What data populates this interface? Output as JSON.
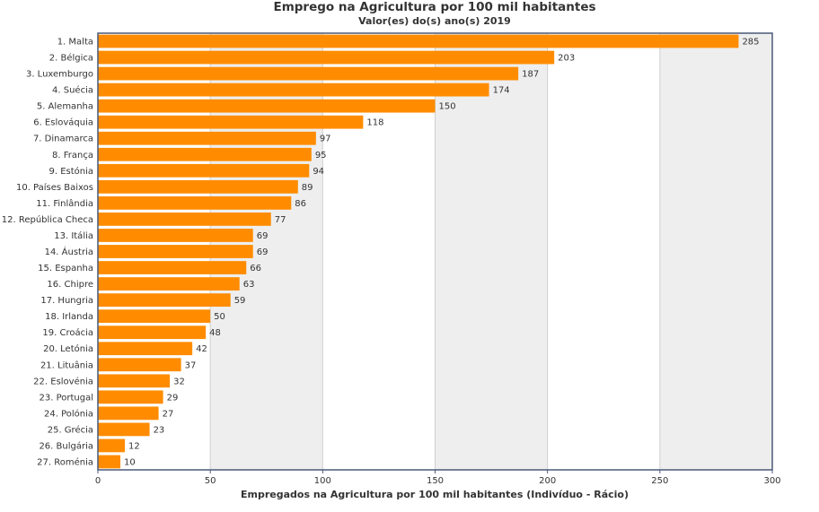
{
  "chart_data": {
    "type": "bar",
    "orientation": "horizontal",
    "title": "Emprego na Agricultura por 100 mil habitantes",
    "subtitle": "Valor(es) do(s) ano(s) 2019",
    "xlabel": "Empregados na Agricultura por 100 mil habitantes (Indivíduo - Rácio)",
    "ylabel": "",
    "xlim": [
      0,
      300
    ],
    "xticks": [
      0,
      50,
      100,
      150,
      200,
      250,
      300
    ],
    "grid": "alternating vertical bands",
    "legend": "none",
    "bar_color": "#ff8c00",
    "band_color": "#eeeeee",
    "categories": [
      "1. Malta",
      "2. Bélgica",
      "3. Luxemburgo",
      "4. Suécia",
      "5. Alemanha",
      "6. Eslováquia",
      "7. Dinamarca",
      "8. França",
      "9. Estónia",
      "10. Países Baixos",
      "11. Finlândia",
      "12. República Checa",
      "13. Itália",
      "14. Áustria",
      "15. Espanha",
      "16. Chipre",
      "17. Hungria",
      "18. Irlanda",
      "19. Croácia",
      "20. Letónia",
      "21. Lituânia",
      "22. Eslovénia",
      "23. Portugal",
      "24. Polónia",
      "25. Grécia",
      "26. Bulgária",
      "27. Roménia"
    ],
    "values": [
      285,
      203,
      187,
      174,
      150,
      118,
      97,
      95,
      94,
      89,
      86,
      77,
      69,
      69,
      66,
      63,
      59,
      50,
      48,
      42,
      37,
      32,
      29,
      27,
      23,
      12,
      10
    ]
  }
}
